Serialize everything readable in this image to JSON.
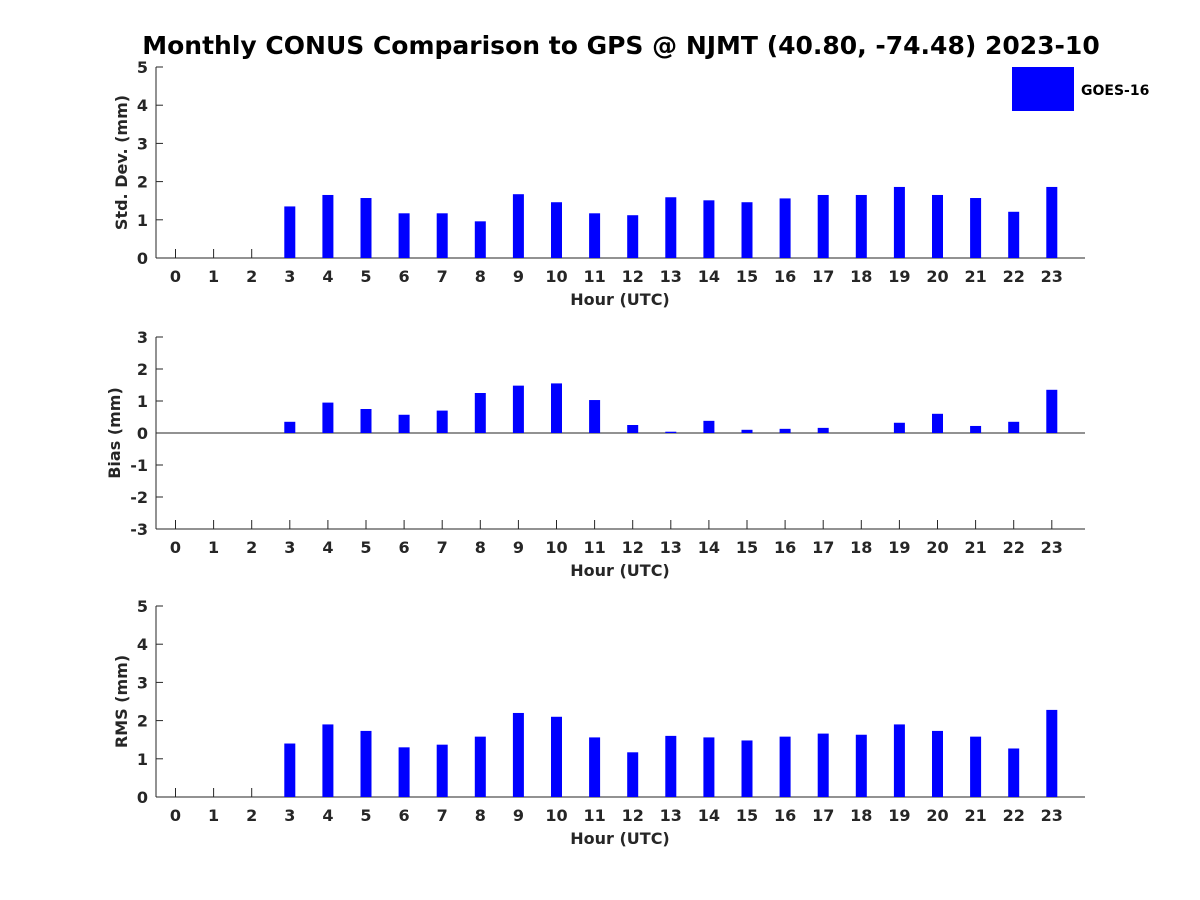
{
  "title": "Monthly CONUS Comparison to GPS @ NJMT (40.80, -74.48) 2023-10",
  "legend": {
    "label": "GOES-16",
    "color": "#0000ff",
    "position": "top-right"
  },
  "chart_data": [
    {
      "type": "bar",
      "xlabel": "Hour (UTC)",
      "ylabel": "Std. Dev. (mm)",
      "ylim": [
        0,
        5
      ],
      "yticks": [
        0,
        1,
        2,
        3,
        4,
        5
      ],
      "categories": [
        "0",
        "1",
        "2",
        "3",
        "4",
        "5",
        "6",
        "7",
        "8",
        "9",
        "10",
        "11",
        "12",
        "13",
        "14",
        "15",
        "16",
        "17",
        "18",
        "19",
        "20",
        "21",
        "22",
        "23"
      ],
      "series": [
        {
          "name": "GOES-16",
          "color": "#0000ff",
          "values": [
            null,
            null,
            null,
            1.35,
            1.65,
            1.57,
            1.17,
            1.17,
            0.96,
            1.67,
            1.46,
            1.17,
            1.12,
            1.59,
            1.51,
            1.46,
            1.56,
            1.65,
            1.65,
            1.86,
            1.65,
            1.57,
            1.21,
            1.86
          ]
        }
      ]
    },
    {
      "type": "bar",
      "xlabel": "Hour (UTC)",
      "ylabel": "Bias (mm)",
      "ylim": [
        -3,
        3
      ],
      "yticks": [
        -3,
        -2,
        -1,
        0,
        1,
        2,
        3
      ],
      "categories": [
        "0",
        "1",
        "2",
        "3",
        "4",
        "5",
        "6",
        "7",
        "8",
        "9",
        "10",
        "11",
        "12",
        "13",
        "14",
        "15",
        "16",
        "17",
        "18",
        "19",
        "20",
        "21",
        "22",
        "23"
      ],
      "series": [
        {
          "name": "GOES-16",
          "color": "#0000ff",
          "values": [
            null,
            null,
            null,
            0.35,
            0.95,
            0.75,
            0.57,
            0.7,
            1.25,
            1.48,
            1.55,
            1.03,
            0.25,
            0.04,
            0.38,
            0.1,
            0.13,
            0.16,
            null,
            0.32,
            0.6,
            0.22,
            0.35,
            1.35
          ]
        }
      ]
    },
    {
      "type": "bar",
      "xlabel": "Hour (UTC)",
      "ylabel": "RMS (mm)",
      "ylim": [
        0,
        5
      ],
      "yticks": [
        0,
        1,
        2,
        3,
        4,
        5
      ],
      "categories": [
        "0",
        "1",
        "2",
        "3",
        "4",
        "5",
        "6",
        "7",
        "8",
        "9",
        "10",
        "11",
        "12",
        "13",
        "14",
        "15",
        "16",
        "17",
        "18",
        "19",
        "20",
        "21",
        "22",
        "23"
      ],
      "series": [
        {
          "name": "GOES-16",
          "color": "#0000ff",
          "values": [
            null,
            null,
            null,
            1.4,
            1.9,
            1.73,
            1.3,
            1.37,
            1.58,
            2.2,
            2.1,
            1.56,
            1.17,
            1.6,
            1.56,
            1.48,
            1.58,
            1.66,
            1.63,
            1.9,
            1.73,
            1.58,
            1.27,
            2.28
          ]
        }
      ]
    }
  ]
}
